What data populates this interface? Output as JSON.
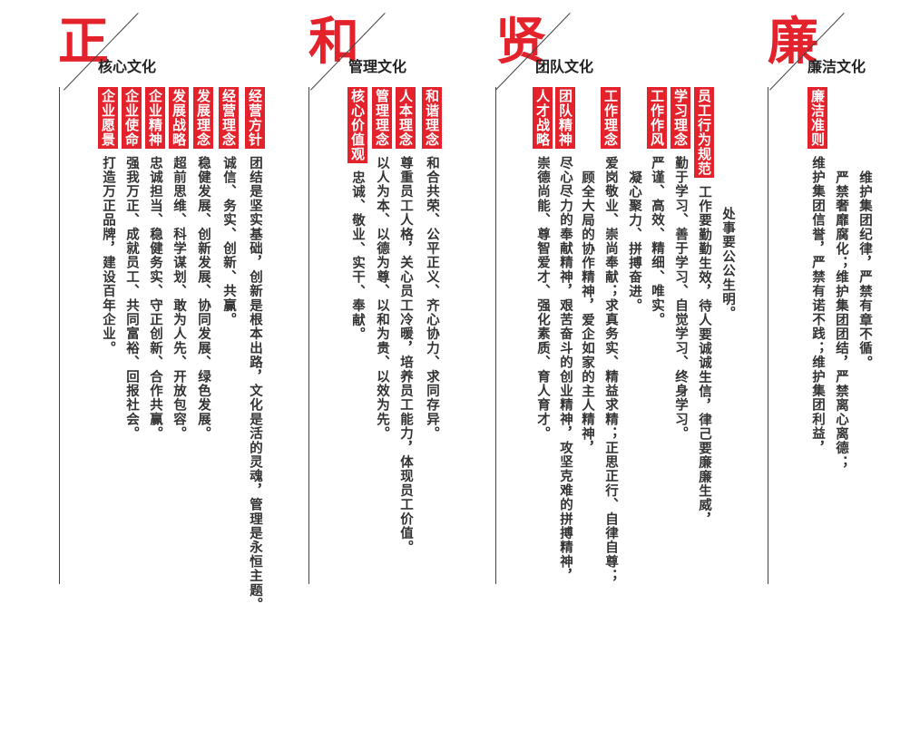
{
  "sections": [
    {
      "char": "正",
      "title": "核心文化",
      "columns": [
        {
          "label": "经营方针",
          "text": "团结是坚实基础，创新是根本出路，文化是活的灵魂，管理是永恒主题。"
        },
        {
          "label": "经营理念",
          "text": "诚信、务实、创新、共赢。"
        },
        {
          "label": "发展理念",
          "text": "稳健发展、创新发展、协同发展、绿色发展。"
        },
        {
          "label": "发展战略",
          "text": "超前思维、科学谋划、敢为人先、开放包容。"
        },
        {
          "label": "企业精神",
          "text": "忠诚担当、稳健务实、守正创新、合作共赢。"
        },
        {
          "label": "企业使命",
          "text": "强我万正、成就员工、共同富裕、回报社会。"
        },
        {
          "label": "企业愿景",
          "text": "打造万正品牌，建设百年企业。"
        }
      ]
    },
    {
      "char": "和",
      "title": "管理文化",
      "columns": [
        {
          "label": "和谐理念",
          "text": "和合共荣、公平正义、齐心协力、求同存异。"
        },
        {
          "label": "人本理念",
          "text": "尊重员工人格，关心员工冷暖，培养员工能力，体现员工价值。"
        },
        {
          "label": "管理理念",
          "text": "以人为本、以德为尊、以和为贵、以效为先。"
        },
        {
          "label": "核心价值观",
          "text": "忠诚、敬业、实干、奉献。"
        }
      ]
    },
    {
      "char": "贤",
      "title": "团队文化",
      "columns": [
        {
          "label": "员工行为规范",
          "text": "工作要勤勤生效，待人要诚诚生信，律己要廉廉生威，"
        },
        {
          "label": "",
          "text": "处事要公公生明。"
        },
        {
          "label": "学习理念",
          "text": "勤于学习、善于学习、自觉学习、终身学习。"
        },
        {
          "label": "工作作风",
          "text": "严谨、高效、精细、唯实。"
        },
        {
          "label": "",
          "text": "凝心聚力、拼搏奋进。"
        },
        {
          "label": "工作理念",
          "text": "爱岗敬业、崇尚奉献；求真务实、精益求精；正思正行、自律自尊；"
        },
        {
          "label": "",
          "text": "顾全大局的协作精神，爱企如家的主人精神，"
        },
        {
          "label": "团队精神",
          "text": "尽心尽力的奉献精神，艰苦奋斗的创业精神，攻坚克难的拼搏精神，"
        },
        {
          "label": "人才战略",
          "text": "崇德尚能、尊智爱才、强化素质、育人育才。"
        }
      ]
    },
    {
      "char": "廉",
      "title": "廉洁文化",
      "columns": [
        {
          "label": "",
          "text": "维护集团纪律，严禁有章不循。"
        },
        {
          "label": "",
          "text": "严禁奢靡腐化；维护集团团结，严禁离心离德；"
        },
        {
          "label": "廉洁准则",
          "text": "维护集团信誉，严禁有诺不践；维护集团利益，"
        }
      ]
    }
  ],
  "colors": {
    "accent": "#e3222b",
    "text": "#333333",
    "line": "#444444"
  }
}
